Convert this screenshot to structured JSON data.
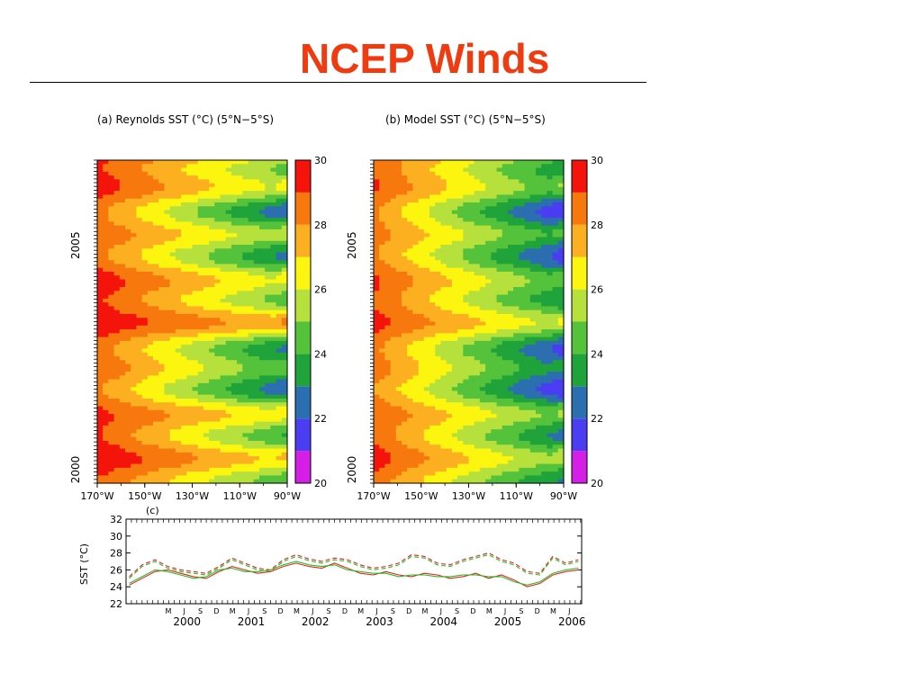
{
  "slide": {
    "title": "NCEP Winds"
  },
  "colors": {
    "title": "#f03a0f",
    "levels": [
      "#d61fe6",
      "#4a3df2",
      "#2b6fb0",
      "#1fa33a",
      "#55c23b",
      "#b6e03c",
      "#fcf50f",
      "#fcb021",
      "#f7790e",
      "#f5140b",
      "#9e0a0a"
    ],
    "obs_line": "#e82020",
    "model_line": "#20c020"
  },
  "chart_data": [
    {
      "type": "heatmap",
      "title": "(a) Reynolds SST (°C) (5°N−5°S)",
      "xticks": [
        "170°W",
        "150°W",
        "130°W",
        "110°W",
        "90°W"
      ],
      "x_values": [
        170,
        150,
        130,
        110,
        90
      ],
      "y_ticks": [
        "2000",
        "2005"
      ],
      "y_range": [
        1999.7,
        2006.9
      ],
      "colorbar_ticks": [
        "30",
        "28",
        "26",
        "24",
        "22",
        "20"
      ],
      "colorbar_range": [
        20,
        30
      ],
      "profile_amplitude": 1.0,
      "profile_offset": 0.0
    },
    {
      "type": "heatmap",
      "title": "(b) Model SST (°C) (5°N−5°S)",
      "xticks": [
        "170°W",
        "150°W",
        "130°W",
        "110°W",
        "90°W"
      ],
      "x_values": [
        170,
        150,
        130,
        110,
        90
      ],
      "y_ticks": [
        "2000",
        "2005"
      ],
      "y_range": [
        1999.7,
        2006.9
      ],
      "colorbar_ticks": [
        "30",
        "28",
        "26",
        "24",
        "22",
        "20"
      ],
      "colorbar_range": [
        20,
        30
      ],
      "profile_amplitude": 0.85,
      "profile_offset": -1.1
    },
    {
      "type": "line",
      "panel_label": "(c)",
      "ylabel": "SST (°C)",
      "ylim": [
        22,
        32
      ],
      "yticks": [
        "32",
        "30",
        "28",
        "26",
        "24",
        "22"
      ],
      "ytick_values": [
        32,
        30,
        28,
        26,
        24,
        22
      ],
      "x_range": [
        1999.55,
        2006.65
      ],
      "month_ticks": [
        "M",
        "J",
        "S",
        "D"
      ],
      "year_labels": [
        "2000",
        "2001",
        "2002",
        "2003",
        "2004",
        "2005",
        "2006"
      ],
      "series": [
        {
          "color": "#e82020",
          "dash": true,
          "x": [
            1999.6,
            1999.8,
            2000.0,
            2000.2,
            2000.4,
            2000.6,
            2000.8,
            2001.0,
            2001.2,
            2001.4,
            2001.6,
            2001.8,
            2002.0,
            2002.2,
            2002.4,
            2002.6,
            2002.8,
            2003.0,
            2003.2,
            2003.4,
            2003.6,
            2003.8,
            2004.0,
            2004.2,
            2004.4,
            2004.6,
            2004.8,
            2005.0,
            2005.2,
            2005.4,
            2005.6,
            2005.8,
            2006.0,
            2006.2,
            2006.4,
            2006.6
          ],
          "y": [
            25.2,
            26.6,
            27.2,
            26.4,
            26.0,
            25.8,
            25.6,
            26.4,
            27.4,
            26.8,
            26.2,
            26.0,
            27.2,
            27.8,
            27.3,
            27.0,
            27.4,
            27.2,
            26.6,
            26.2,
            26.4,
            26.8,
            27.8,
            27.6,
            26.8,
            26.6,
            27.2,
            27.6,
            28.0,
            27.2,
            26.8,
            25.8,
            25.6,
            27.6,
            26.8,
            27.2
          ]
        },
        {
          "color": "#20c020",
          "dash": true,
          "x": [
            1999.6,
            1999.8,
            2000.0,
            2000.2,
            2000.4,
            2000.6,
            2000.8,
            2001.0,
            2001.2,
            2001.4,
            2001.6,
            2001.8,
            2002.0,
            2002.2,
            2002.4,
            2002.6,
            2002.8,
            2003.0,
            2003.2,
            2003.4,
            2003.6,
            2003.8,
            2004.0,
            2004.2,
            2004.4,
            2004.6,
            2004.8,
            2005.0,
            2005.2,
            2005.4,
            2005.6,
            2005.8,
            2006.0,
            2006.2,
            2006.4,
            2006.6
          ],
          "y": [
            25.0,
            26.4,
            27.0,
            26.2,
            25.8,
            25.6,
            25.4,
            26.2,
            27.2,
            26.6,
            26.0,
            25.8,
            27.0,
            27.6,
            27.1,
            26.8,
            27.2,
            27.0,
            26.4,
            26.0,
            26.2,
            26.6,
            27.6,
            27.4,
            26.6,
            26.4,
            27.0,
            27.4,
            27.8,
            27.0,
            26.6,
            25.6,
            25.4,
            27.4,
            26.6,
            27.0
          ]
        },
        {
          "color": "#e82020",
          "dash": false,
          "x": [
            1999.6,
            1999.8,
            2000.0,
            2000.2,
            2000.4,
            2000.6,
            2000.8,
            2001.0,
            2001.2,
            2001.4,
            2001.6,
            2001.8,
            2002.0,
            2002.2,
            2002.4,
            2002.6,
            2002.8,
            2003.0,
            2003.2,
            2003.4,
            2003.6,
            2003.8,
            2004.0,
            2004.2,
            2004.4,
            2004.6,
            2004.8,
            2005.0,
            2005.2,
            2005.4,
            2005.6,
            2005.8,
            2006.0,
            2006.2,
            2006.4,
            2006.6
          ],
          "y": [
            24.2,
            25.0,
            25.8,
            26.0,
            25.6,
            25.2,
            25.0,
            25.8,
            26.4,
            26.0,
            25.6,
            25.8,
            26.4,
            26.8,
            26.4,
            26.2,
            26.8,
            26.2,
            25.6,
            25.4,
            25.8,
            25.4,
            25.2,
            25.6,
            25.4,
            25.0,
            25.2,
            25.6,
            25.0,
            25.4,
            24.8,
            24.0,
            24.4,
            25.4,
            25.8,
            26.0
          ]
        },
        {
          "color": "#20c020",
          "dash": false,
          "x": [
            1999.6,
            1999.8,
            2000.0,
            2000.2,
            2000.4,
            2000.6,
            2000.8,
            2001.0,
            2001.2,
            2001.4,
            2001.6,
            2001.8,
            2002.0,
            2002.2,
            2002.4,
            2002.6,
            2002.8,
            2003.0,
            2003.2,
            2003.4,
            2003.6,
            2003.8,
            2004.0,
            2004.2,
            2004.4,
            2004.6,
            2004.8,
            2005.0,
            2005.2,
            2005.4,
            2005.6,
            2005.8,
            2006.0,
            2006.2,
            2006.4,
            2006.6
          ],
          "y": [
            24.4,
            25.2,
            26.0,
            25.8,
            25.4,
            25.0,
            25.2,
            26.0,
            26.2,
            25.8,
            25.8,
            26.0,
            26.6,
            27.0,
            26.6,
            26.4,
            26.6,
            26.0,
            25.8,
            25.6,
            25.6,
            25.2,
            25.4,
            25.4,
            25.2,
            25.2,
            25.4,
            25.4,
            25.2,
            25.2,
            24.6,
            24.2,
            24.6,
            25.6,
            26.0,
            26.2
          ]
        }
      ]
    }
  ]
}
